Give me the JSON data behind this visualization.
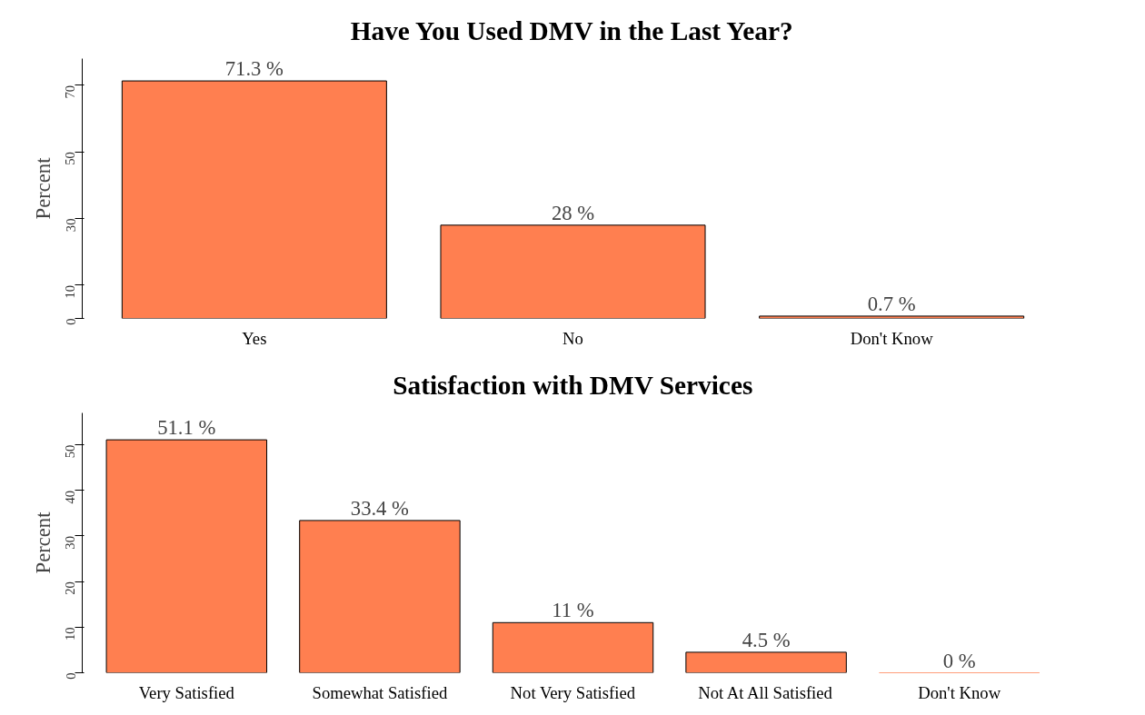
{
  "chart_data": [
    {
      "type": "bar",
      "title": "Have You Used DMV in the Last Year?",
      "ylabel": "Percent",
      "categories": [
        "Yes",
        "No",
        "Don't Know"
      ],
      "values": [
        71.3,
        28,
        0.7
      ],
      "value_labels": [
        "71.3 %",
        "28 %",
        "0.7 %"
      ],
      "color": "#ff7f50",
      "ylim": [
        0,
        78
      ],
      "yticks": [
        0,
        10,
        30,
        50,
        70
      ],
      "grid": false
    },
    {
      "type": "bar",
      "title": "Satisfaction with DMV Services",
      "ylabel": "Percent",
      "categories": [
        "Very Satisfied",
        "Somewhat Satisfied",
        "Not Very Satisfied",
        "Not At All Satisfied",
        "Don't Know"
      ],
      "values": [
        51.1,
        33.4,
        11,
        4.5,
        0
      ],
      "value_labels": [
        "51.1 %",
        "33.4 %",
        "11 %",
        "4.5 %",
        "0 %"
      ],
      "color": "#ff7f50",
      "ylim": [
        0,
        57
      ],
      "yticks": [
        0,
        10,
        20,
        30,
        40,
        50
      ],
      "grid": false
    }
  ]
}
